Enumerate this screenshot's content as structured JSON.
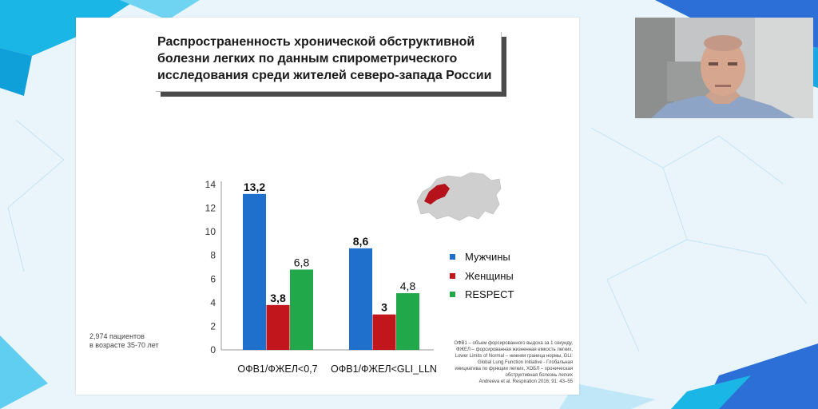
{
  "slide": {
    "title": "Распространенность хронической обструктивной болезни легких по данным спирометрического исследования среди жителей северо-запада России",
    "patients_note_line1": "2,974 пациентов",
    "patients_note_line2": "в возрасте 35-70 лет",
    "footnote": "ОФВ1 – объем форсированного выдоха за 1 секунду, ФЖЕЛ – форсированная жизненная емкость легких, Lower Limits of Normal – нижняя граница нормы, GLI: Global Lung Function Initiative - Глобальная инициатива по функции легких, ХОБЛ – хроническая обструктивная болезнь легких",
    "citation": "Andreeva et al. Respiration 2016; 91: 43–55",
    "map_icon": "russia-map-northwest-highlighted"
  },
  "webcam": {
    "icon": "presenter-video"
  },
  "colors": {
    "men": "#1f6fcc",
    "women": "#c0161c",
    "respect": "#20a84b",
    "title_shadow": "#4a4a4a"
  },
  "chart_data": {
    "type": "bar",
    "categories": [
      "ОФВ1/ФЖЕЛ<0,7",
      "ОФВ1/ФЖЕЛ<GLI_LLN"
    ],
    "series": [
      {
        "name": "Мужчины",
        "values": [
          13.2,
          8.6
        ],
        "labels": [
          "13,2",
          "8,6"
        ],
        "bold": true
      },
      {
        "name": "Женщины",
        "values": [
          3.8,
          3
        ],
        "labels": [
          "3,8",
          "3"
        ],
        "bold": true
      },
      {
        "name": "RESPECT",
        "values": [
          6.8,
          4.8
        ],
        "labels": [
          "6,8",
          "4,8"
        ],
        "bold": false
      }
    ],
    "y_ticks": [
      "0",
      "2",
      "4",
      "6",
      "8",
      "10",
      "12",
      "14"
    ],
    "ylim": [
      0,
      14
    ],
    "grid": false,
    "legend_position": "right"
  }
}
